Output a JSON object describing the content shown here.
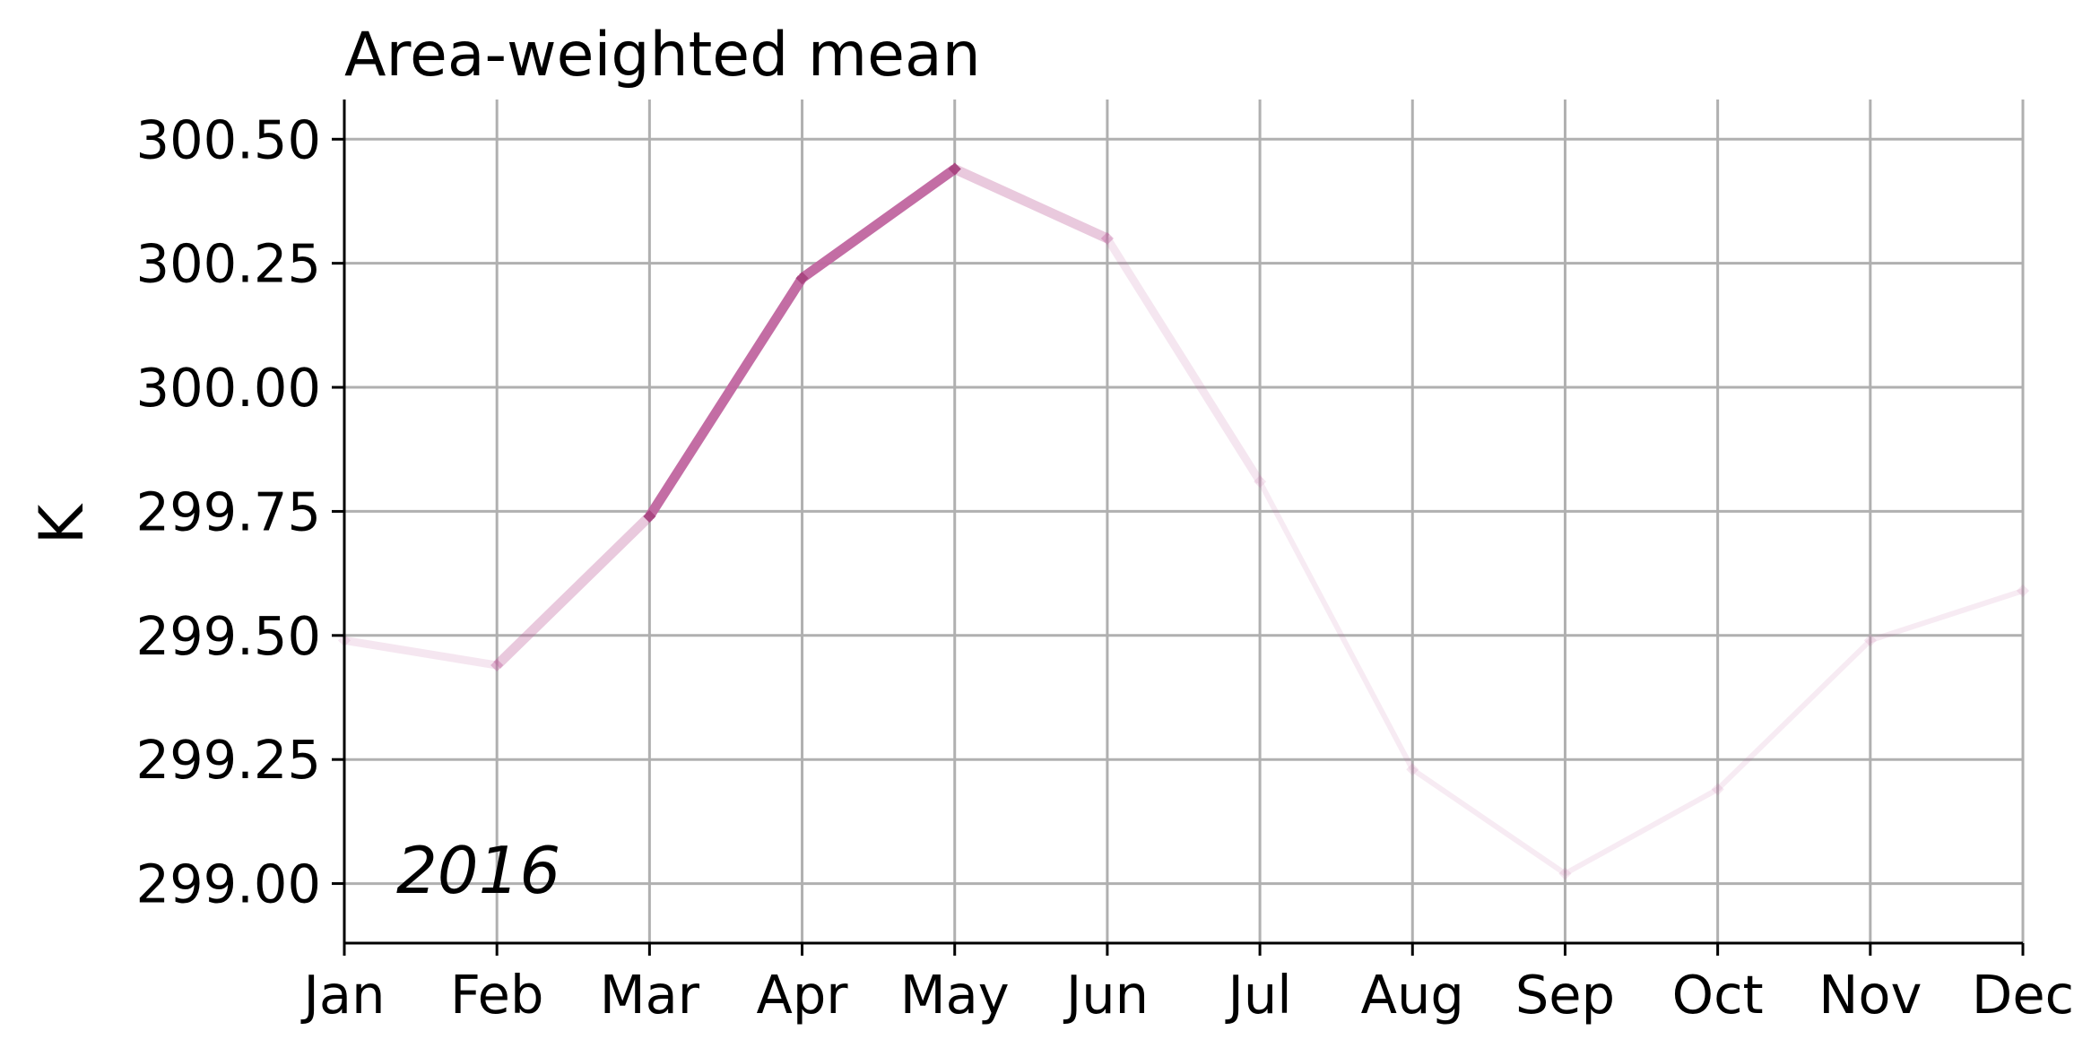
{
  "chart_data": {
    "type": "line",
    "title": "Area-weighted mean",
    "xlabel": "",
    "ylabel": "K",
    "annotation": "2016",
    "categories": [
      "Jan",
      "Feb",
      "Mar",
      "Apr",
      "May",
      "Jun",
      "Jul",
      "Aug",
      "Sep",
      "Oct",
      "Nov",
      "Dec"
    ],
    "yticks": [
      299.0,
      299.25,
      299.5,
      299.75,
      300.0,
      300.25,
      300.5
    ],
    "ytick_labels": [
      "299.00",
      "299.25",
      "299.50",
      "299.75",
      "300.00",
      "300.25",
      "300.50"
    ],
    "ylim": [
      298.88,
      300.58
    ],
    "grid": true,
    "series": [
      {
        "values": [
          299.49,
          299.44,
          299.74,
          300.22,
          300.44,
          300.3,
          299.81,
          299.23,
          299.02,
          299.19,
          299.49,
          299.59
        ],
        "color": "#c0659f",
        "highlight_range": [
          "Mar",
          "May"
        ]
      }
    ]
  }
}
